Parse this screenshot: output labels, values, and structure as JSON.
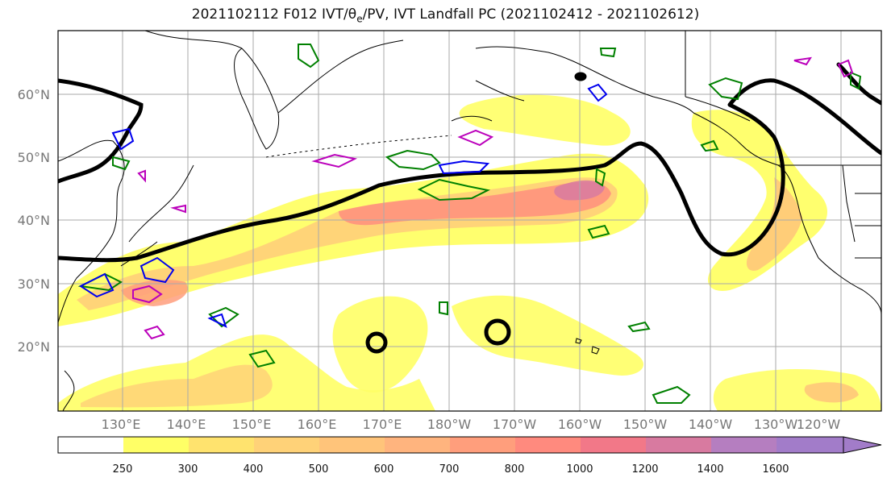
{
  "title": {
    "date": "2021102112",
    "forecast": "F012",
    "fields_prefix": "IVT/",
    "theta": "θ",
    "theta_sub": "e",
    "fields_suffix": "/PV, IVT Landfall PC",
    "valid_range": "(2021102412 - 2021102612)"
  },
  "map": {
    "region": "North Pacific",
    "lat_labels": [
      "60°N",
      "50°N",
      "40°N",
      "30°N",
      "20°N"
    ],
    "lon_labels": [
      "130°E",
      "140°E",
      "150°E",
      "160°E",
      "170°E",
      "180°W",
      "170°W",
      "160°W",
      "150°W",
      "140°W",
      "130°W",
      "120°W"
    ],
    "colors": {
      "coast": "#000000",
      "grid": "#aaaaaa",
      "theta_e_contour": "#000000",
      "pv_green": "#008000",
      "pv_blue": "#0000ee",
      "pv_magenta": "#bb00bb"
    }
  },
  "colorbar": {
    "levels": [
      "250",
      "300",
      "400",
      "500",
      "600",
      "700",
      "800",
      "1000",
      "1200",
      "1400",
      "1600"
    ],
    "colors": [
      "#ffffff",
      "#ffff66",
      "#ffe36e",
      "#ffd278",
      "#ffc47a",
      "#ffb47e",
      "#ff9e7c",
      "#ff8a7e",
      "#f27888",
      "#d87aa0",
      "#b57ec0",
      "#a27cc9"
    ],
    "extend": "max"
  }
}
